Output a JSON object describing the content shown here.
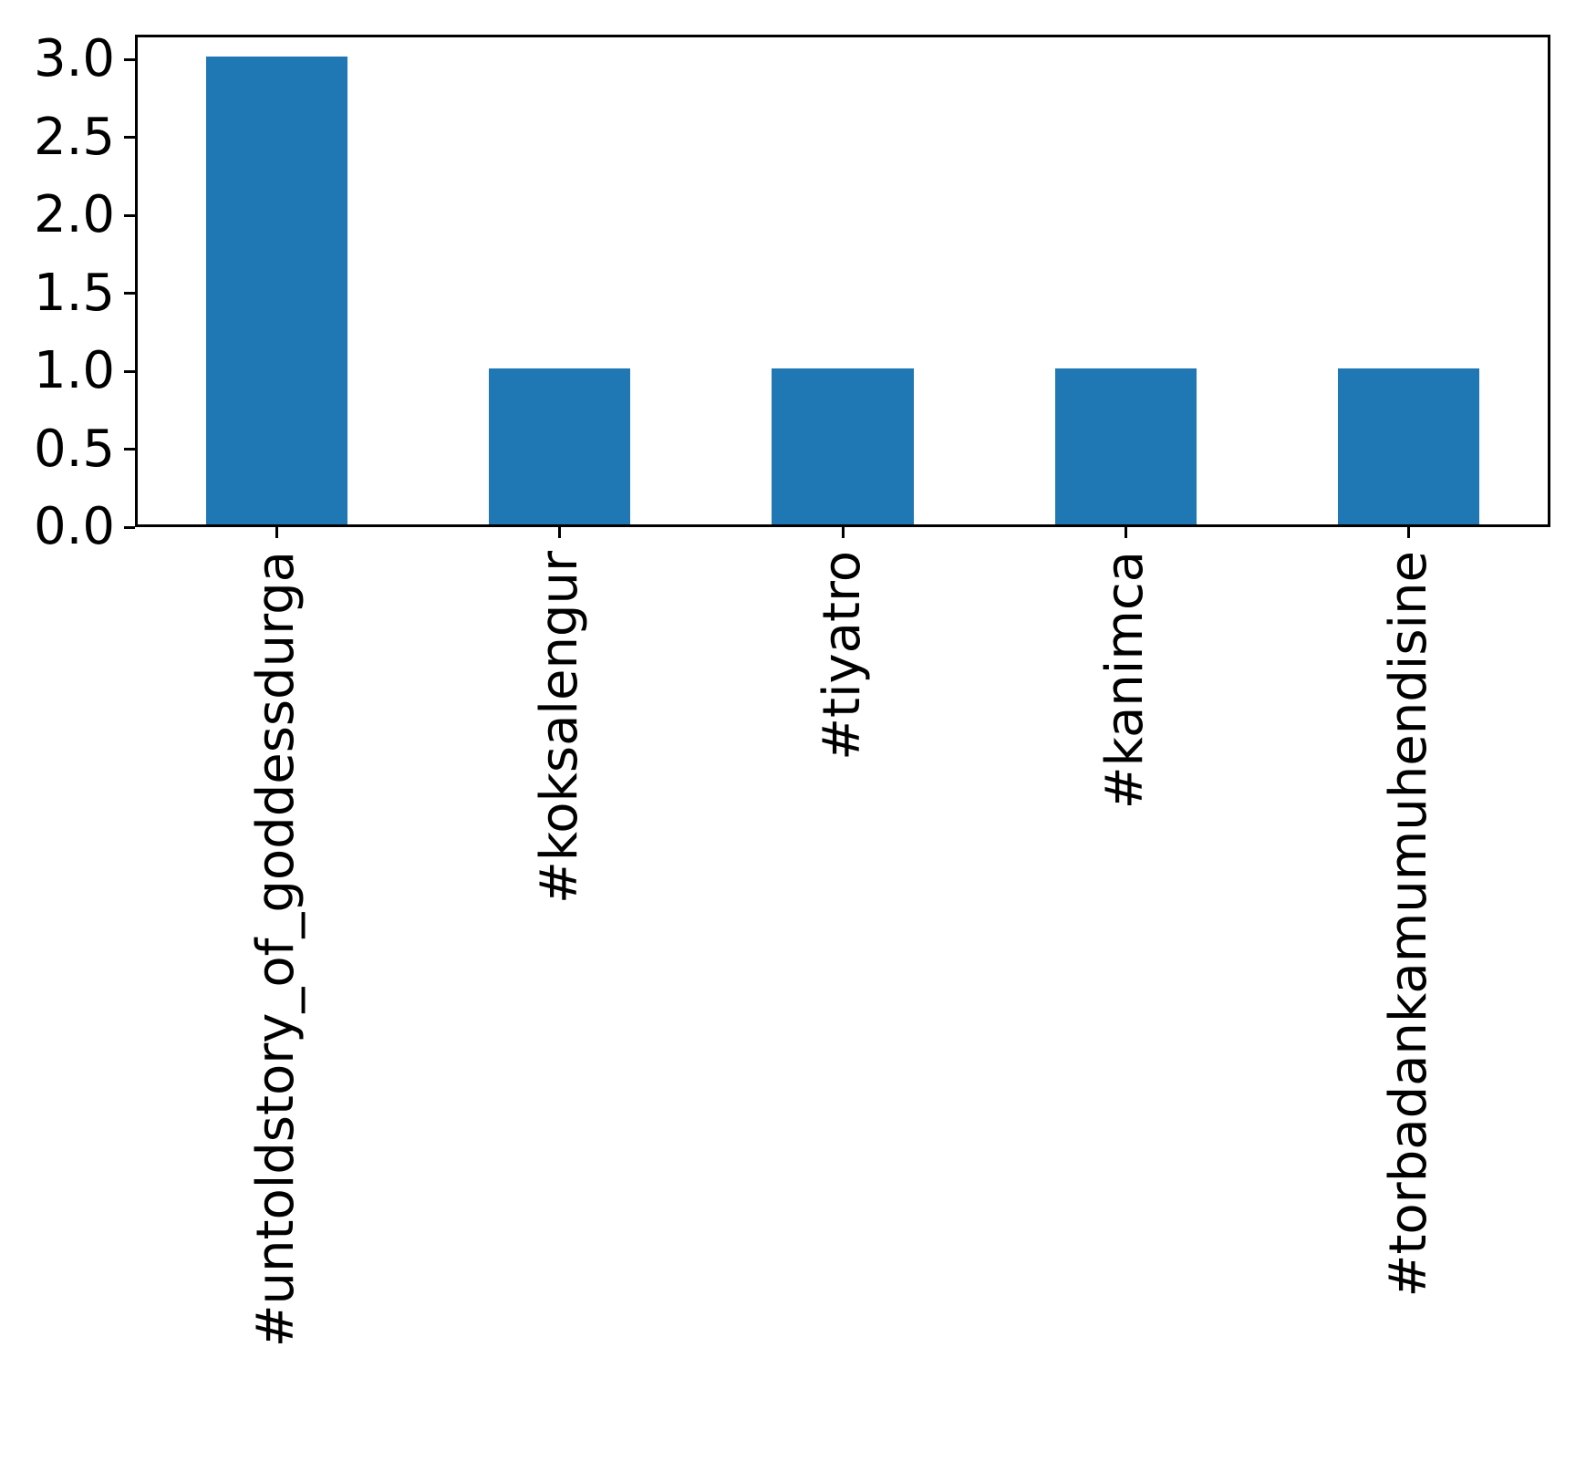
{
  "chart_data": {
    "type": "bar",
    "categories": [
      "#untoldstory_of_goddessdurga",
      "#koksalengur",
      "#tiyatro",
      "#kanimca",
      "#torbadankamumuhendisine"
    ],
    "values": [
      3,
      1,
      1,
      1,
      1
    ],
    "title": "",
    "xlabel": "",
    "ylabel": "",
    "ylim": [
      0.0,
      3.1579
    ],
    "yticks": [
      0.0,
      0.5,
      1.0,
      1.5,
      2.0,
      2.5,
      3.0
    ],
    "ytick_labels": [
      "0.0",
      "0.5",
      "1.0",
      "1.5",
      "2.0",
      "2.5",
      "3.0"
    ],
    "x_tick_rotation": 90,
    "grid": false,
    "legend": null,
    "bar_color": "#1f77b4",
    "axis_color": "#000000",
    "text_color": "#000000",
    "background_color": "#ffffff"
  }
}
